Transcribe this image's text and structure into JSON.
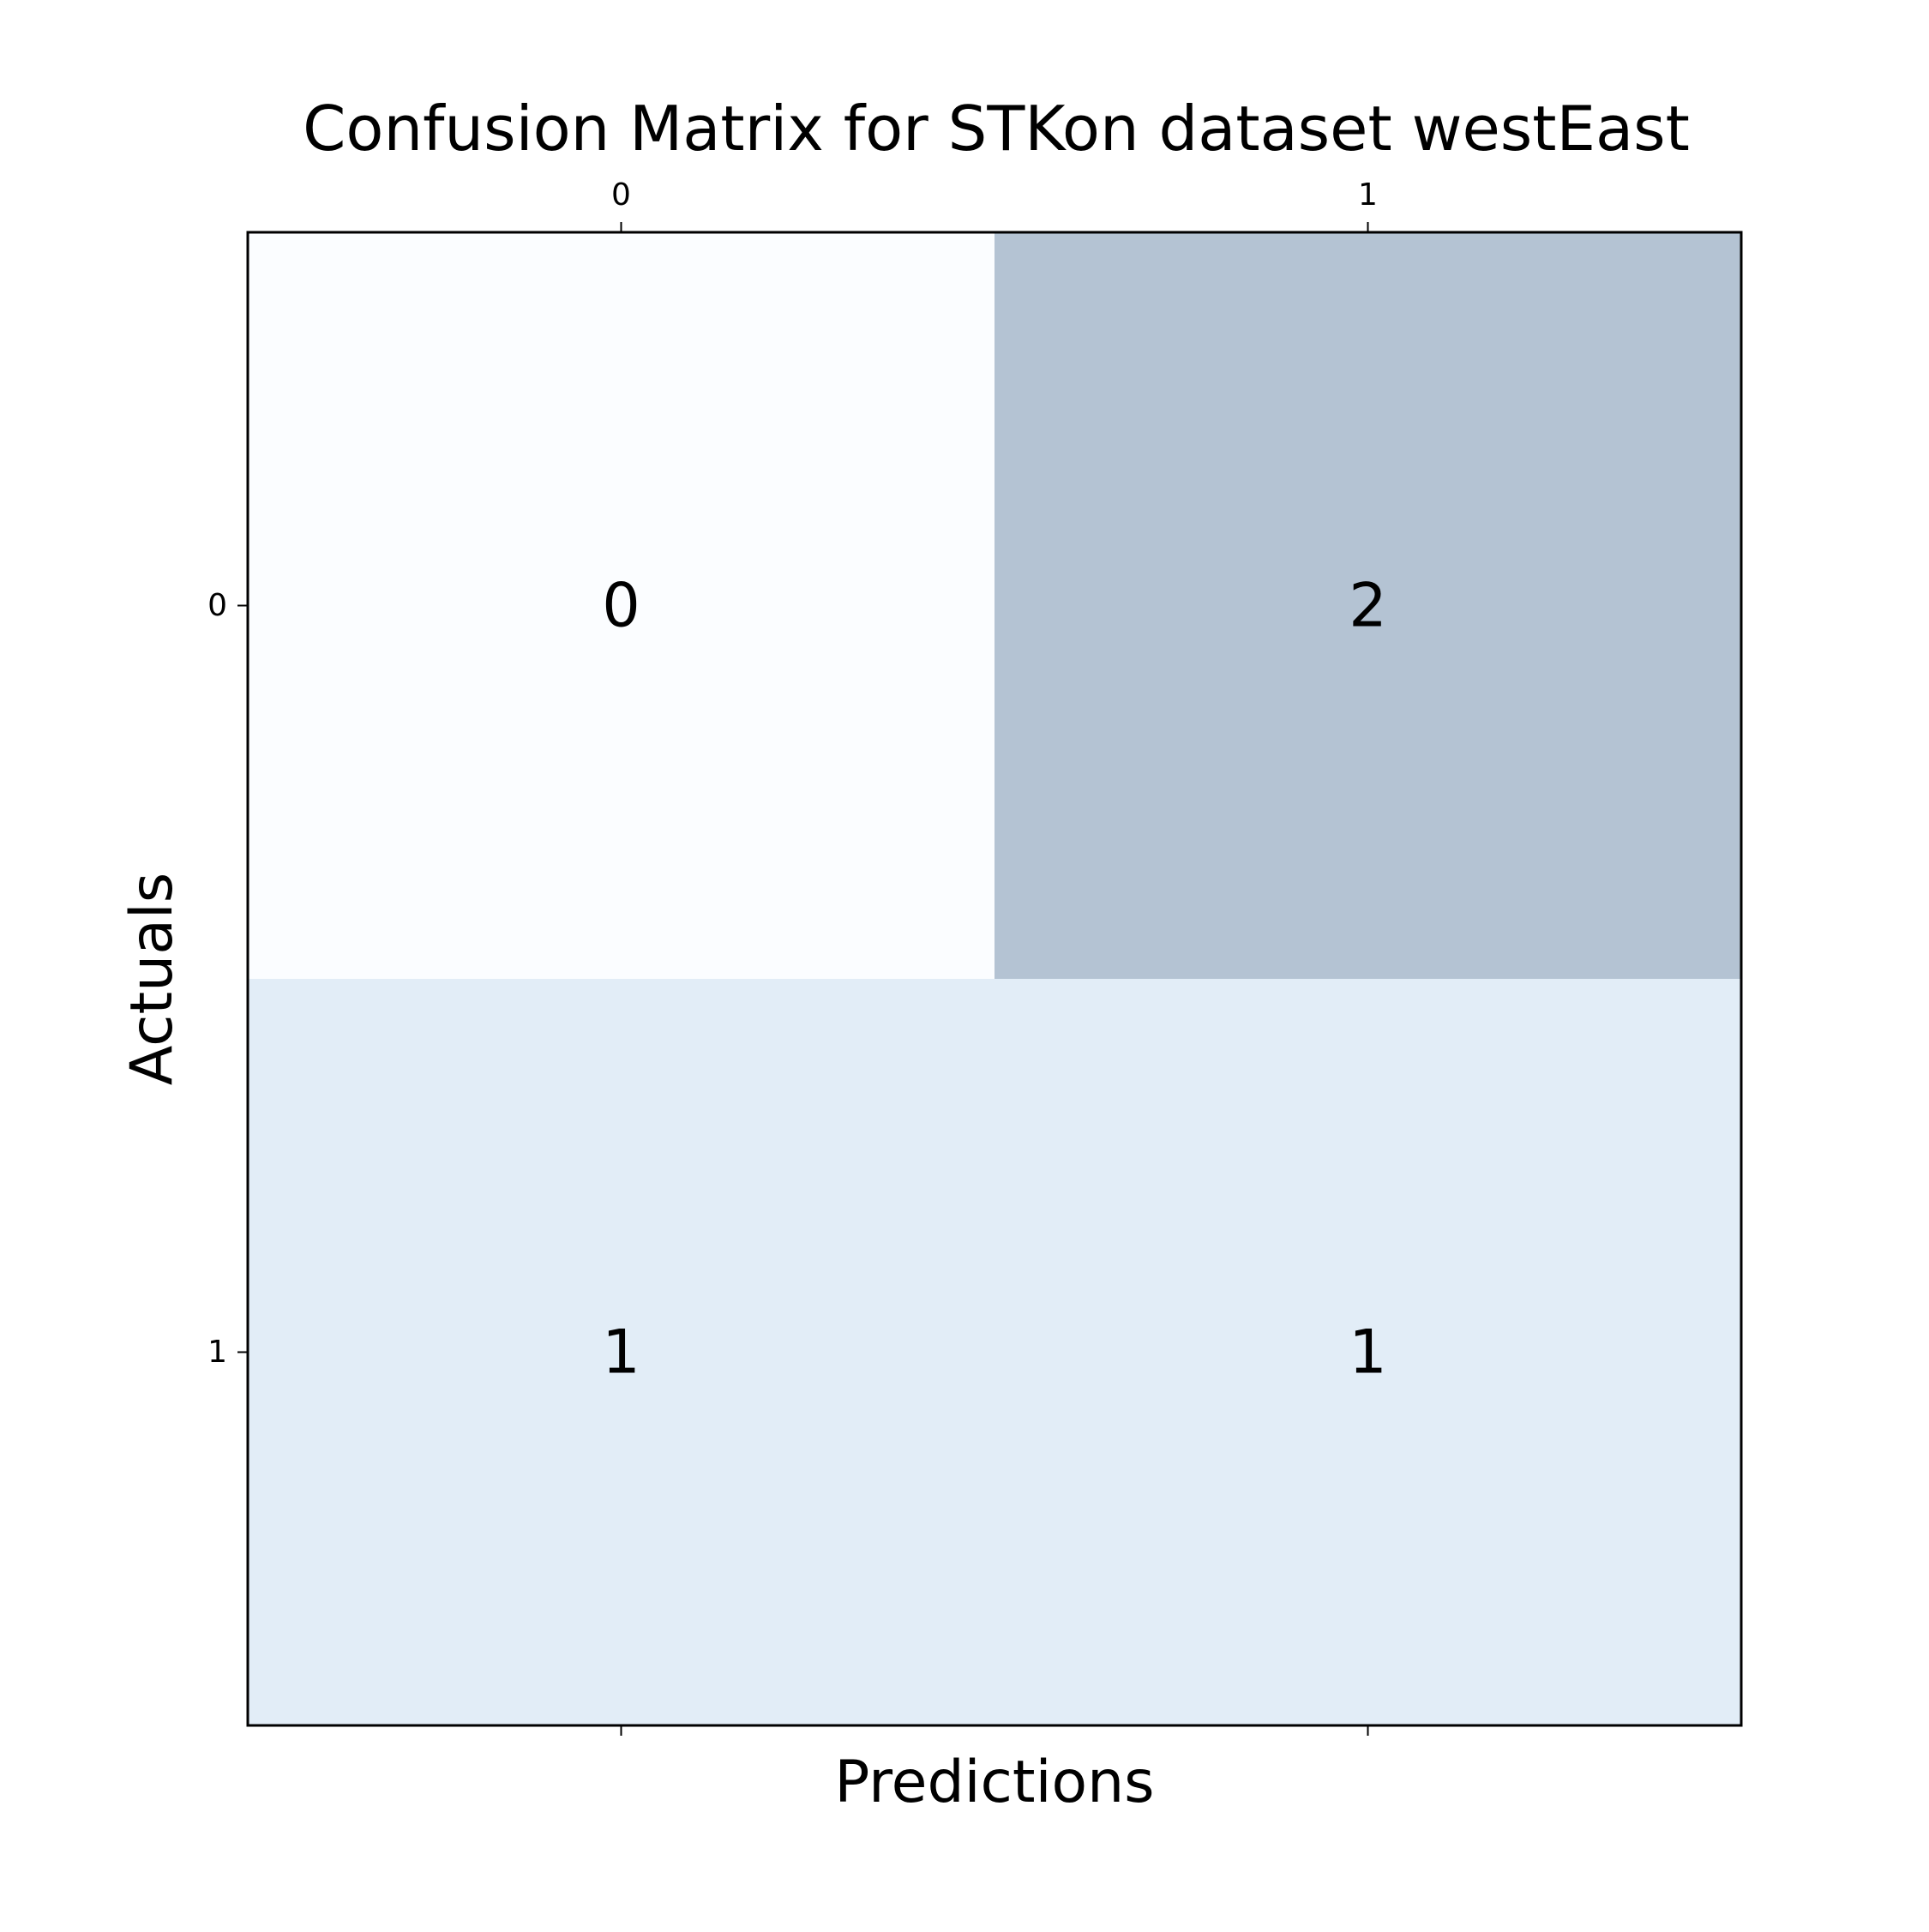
{
  "chart_data": {
    "type": "heatmap",
    "title": "Confusion Matrix for STKon dataset westEast",
    "xlabel": "Predictions",
    "ylabel": "Actuals",
    "x_categories": [
      "0",
      "1"
    ],
    "y_categories": [
      "0",
      "1"
    ],
    "values": [
      [
        0,
        2
      ],
      [
        1,
        1
      ]
    ],
    "cell_labels": [
      [
        "0",
        "2"
      ],
      [
        "1",
        "1"
      ]
    ],
    "vmin": 0,
    "vmax": 2,
    "x_tick_position": "top",
    "grid": false,
    "colormap": "Blues",
    "colors": {
      "low": "#f7fbff",
      "mid": "#c6dbef",
      "high": "#6a88a8",
      "alpha": 0.5,
      "frame": "#000000",
      "text": "#000000"
    }
  }
}
